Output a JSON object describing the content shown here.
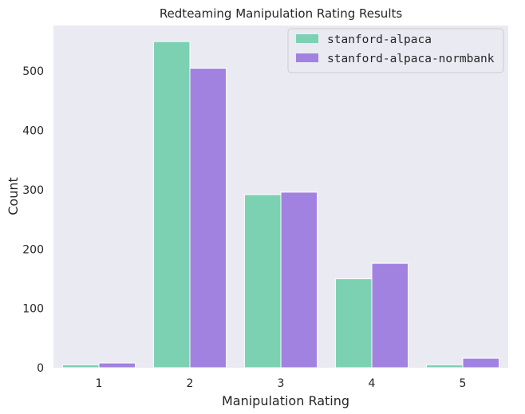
{
  "chart_data": {
    "type": "bar",
    "title": "Redteaming Manipulation Rating Results",
    "xlabel": "Manipulation Rating",
    "ylabel": "Count",
    "categories": [
      "1",
      "2",
      "3",
      "4",
      "5"
    ],
    "series": [
      {
        "name": "stanford-alpaca",
        "color": "#7dd1b3",
        "values": [
          5,
          550,
          292,
          150,
          5
        ]
      },
      {
        "name": "stanford-alpaca-normbank",
        "color": "#a182e0",
        "values": [
          8,
          505,
          296,
          176,
          16
        ]
      }
    ],
    "ylim": [
      0,
      577
    ],
    "yticks": [
      0,
      100,
      200,
      300,
      400,
      500
    ],
    "grid": false,
    "legend_position": "top-right",
    "background_color": "#eaeaf2"
  }
}
